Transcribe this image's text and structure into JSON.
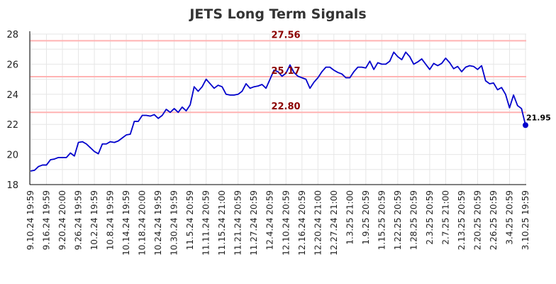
{
  "chart_data": {
    "type": "line",
    "title": "JETS Long Term Signals",
    "xlabel": "",
    "ylabel": "",
    "ylim": [
      18,
      28
    ],
    "yticks": [
      "18",
      "20",
      "22",
      "24",
      "26",
      "28"
    ],
    "grid": true,
    "x_tick_labels": [
      "9.10.24 19:59",
      "9.16.24 19:59",
      "9.20.24 20:00",
      "9.26.24 19:59",
      "10.2.24 19:59",
      "10.8.24 19:59",
      "10.14.24 19:59",
      "10.18.24 20:00",
      "10.24.24 19:59",
      "10.30.24 19:59",
      "11.5.24 20:59",
      "11.11.24 20:59",
      "11.15.24 21:00",
      "11.21.24 20:59",
      "11.27.24 20:59",
      "12.4.24 20:59",
      "12.10.24 20:59",
      "12.16.24 20:59",
      "12.20.24 21:00",
      "12.27.24 21:00",
      "1.3.25 21:00",
      "1.9.25 20:59",
      "1.15.25 20:59",
      "1.22.25 20:59",
      "1.28.25 20:59",
      "2.3.25 20:59",
      "2.7.25 21:00",
      "2.13.25 20:59",
      "2.20.25 20:59",
      "2.26.25 20:59",
      "3.4.25 20:59",
      "3.10.25 19:59"
    ],
    "horizontal_lines": [
      {
        "label": "27.56",
        "value": 27.56,
        "color": "#ffb3b3"
      },
      {
        "label": "25.17",
        "value": 25.17,
        "color": "#ffb3b3"
      },
      {
        "label": "22.80",
        "value": 22.8,
        "color": "#ffb3b3"
      }
    ],
    "last_value_label": "21.95",
    "series": [
      {
        "color": "#0000cc",
        "values": [
          18.9,
          18.95,
          19.2,
          19.3,
          19.3,
          19.65,
          19.7,
          19.8,
          19.8,
          19.8,
          20.1,
          19.9,
          20.8,
          20.85,
          20.7,
          20.45,
          20.2,
          20.05,
          20.7,
          20.7,
          20.85,
          20.8,
          20.9,
          21.1,
          21.3,
          21.35,
          22.2,
          22.2,
          22.6,
          22.6,
          22.55,
          22.65,
          22.4,
          22.6,
          23.0,
          22.8,
          23.05,
          22.8,
          23.15,
          22.9,
          23.3,
          24.5,
          24.2,
          24.5,
          25.0,
          24.7,
          24.4,
          24.6,
          24.5,
          24.0,
          23.95,
          23.95,
          24.0,
          24.2,
          24.7,
          24.4,
          24.5,
          24.55,
          24.65,
          24.4,
          25.0,
          25.6,
          25.5,
          25.2,
          25.4,
          25.95,
          25.45,
          25.2,
          25.1,
          25.0,
          24.4,
          24.8,
          25.1,
          25.5,
          25.8,
          25.8,
          25.6,
          25.45,
          25.35,
          25.1,
          25.1,
          25.5,
          25.8,
          25.8,
          25.75,
          26.2,
          25.65,
          26.1,
          26.0,
          26.0,
          26.2,
          26.8,
          26.5,
          26.3,
          26.8,
          26.5,
          26.0,
          26.15,
          26.35,
          26.0,
          25.65,
          26.05,
          25.9,
          26.05,
          26.4,
          26.1,
          25.7,
          25.85,
          25.5,
          25.8,
          25.9,
          25.85,
          25.65,
          25.9,
          24.9,
          24.7,
          24.75,
          24.3,
          24.45,
          24.0,
          23.1,
          23.95,
          23.25,
          23.05,
          21.95
        ]
      }
    ]
  }
}
